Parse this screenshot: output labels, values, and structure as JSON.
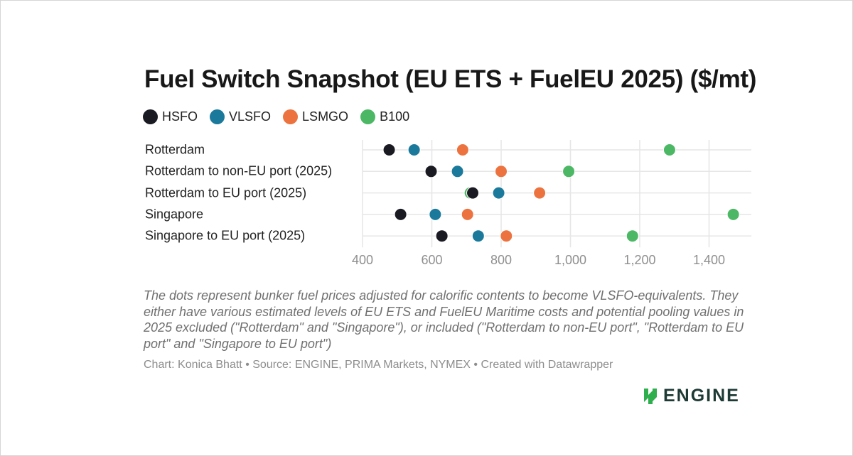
{
  "chart_data": {
    "type": "scatter",
    "subtype": "dot-plot",
    "title": "Fuel Switch Snapshot (EU ETS + FuelEU 2025) ($/mt)",
    "categories": [
      "Rotterdam",
      "Rotterdam to non-EU port (2025)",
      "Rotterdam to EU port (2025)",
      "Singapore",
      "Singapore to EU port (2025)"
    ],
    "series": [
      {
        "name": "HSFO",
        "color": "#1a1a22",
        "values": [
          477,
          598,
          718,
          510,
          629
        ]
      },
      {
        "name": "VLSFO",
        "color": "#1b7a9c",
        "values": [
          549,
          674,
          793,
          610,
          734
        ]
      },
      {
        "name": "LSMGO",
        "color": "#ec733f",
        "values": [
          689,
          800,
          911,
          703,
          815
        ]
      },
      {
        "name": "B100",
        "color": "#4cb865",
        "values": [
          1286,
          995,
          711,
          1470,
          1179
        ]
      }
    ],
    "xlim": [
      400,
      1500
    ],
    "xticks": [
      400,
      600,
      800,
      1000,
      1200,
      1400
    ],
    "xtick_labels": [
      "400",
      "600",
      "800",
      "1,000",
      "1,200",
      "1,400"
    ],
    "xlabel": "",
    "ylabel": "",
    "grid": true,
    "legend": "top-left"
  },
  "note": "The dots represent bunker fuel prices adjusted for calorific contents to become VLSFO-equivalents. They either have various estimated levels of EU ETS and FuelEU Maritime costs and potential pooling values in 2025 excluded (\"Rotterdam\" and \"Singapore\"), or included (\"Rotterdam to non-EU port\", \"Rotterdam to EU port\" and \"Singapore to EU port\")",
  "source": "Chart: Konica Bhatt • Source: ENGINE, PRIMA Markets, NYMEX • Created with Datawrapper",
  "logo": {
    "text": "ENGINE",
    "icon": "engine-logo-icon",
    "color": "#1e3a34",
    "accent": "#2fae4e"
  }
}
